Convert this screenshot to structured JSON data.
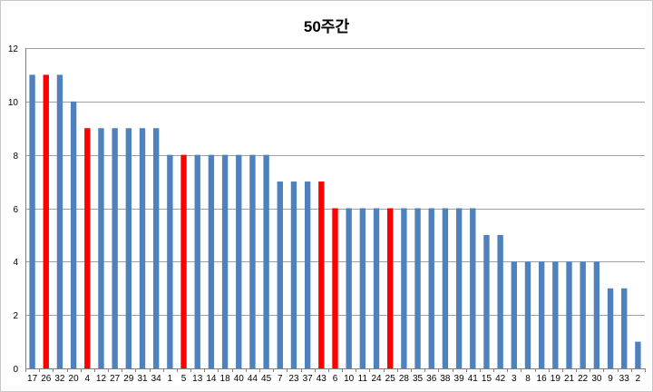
{
  "chart_data": {
    "type": "bar",
    "title": "50주간",
    "xlabel": "",
    "ylabel": "",
    "ylim": [
      0,
      12
    ],
    "yticks": [
      0,
      2,
      4,
      6,
      8,
      10,
      12
    ],
    "grid": true,
    "categories": [
      "17",
      "26",
      "32",
      "20",
      "4",
      "12",
      "27",
      "29",
      "31",
      "34",
      "1",
      "5",
      "13",
      "14",
      "18",
      "40",
      "44",
      "45",
      "7",
      "23",
      "37",
      "43",
      "6",
      "10",
      "11",
      "24",
      "25",
      "28",
      "35",
      "36",
      "38",
      "39",
      "41",
      "15",
      "42",
      "3",
      "8",
      "16",
      "19",
      "21",
      "22",
      "30",
      "9",
      "33",
      "2"
    ],
    "values": [
      11,
      11,
      11,
      10,
      9,
      9,
      9,
      9,
      9,
      9,
      8,
      8,
      8,
      8,
      8,
      8,
      8,
      8,
      7,
      7,
      7,
      7,
      6,
      6,
      6,
      6,
      6,
      6,
      6,
      6,
      6,
      6,
      6,
      5,
      5,
      4,
      4,
      4,
      4,
      4,
      4,
      4,
      3,
      3,
      1
    ],
    "highlighted": [
      "26",
      "4",
      "5",
      "43",
      "6",
      "25"
    ],
    "colors": {
      "default": "#4f81bd",
      "highlight": "#ff0000"
    }
  }
}
